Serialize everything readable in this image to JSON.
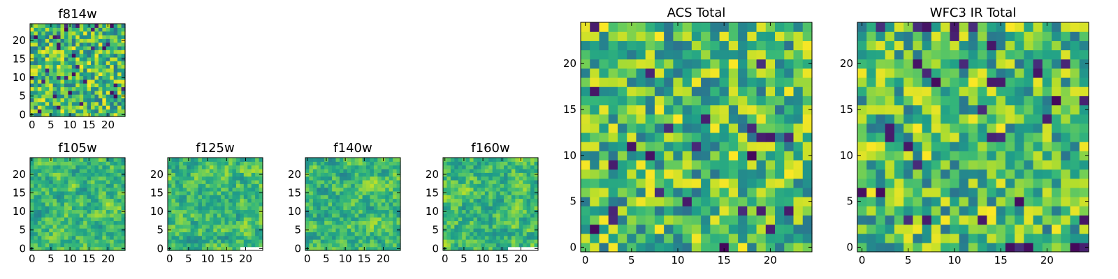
{
  "figure": {
    "colormap": "viridis",
    "colors": {
      "low": "#440154",
      "mid": "#21918c",
      "high": "#fde725",
      "frame": "#000000"
    }
  },
  "chart_data": [
    {
      "type": "heatmap",
      "title": "f814w",
      "grid_size": 25,
      "seed": 814,
      "style": "fine",
      "x_ticks": [
        0,
        5,
        10,
        15,
        20
      ],
      "y_ticks": [
        0,
        5,
        10,
        15,
        20
      ],
      "xlim": [
        0,
        25
      ],
      "ylim": [
        0,
        25
      ]
    },
    {
      "type": "heatmap",
      "title": "f105w",
      "grid_size": 25,
      "seed": 105,
      "style": "smooth",
      "x_ticks": [
        0,
        5,
        10,
        15,
        20
      ],
      "y_ticks": [
        0,
        5,
        10,
        15,
        20
      ],
      "xlim": [
        0,
        25
      ],
      "ylim": [
        0,
        25
      ]
    },
    {
      "type": "heatmap",
      "title": "f125w",
      "grid_size": 25,
      "seed": 125,
      "style": "smooth",
      "missing_bottom_right_columns": [
        19,
        24
      ],
      "x_ticks": [
        0,
        5,
        10,
        15,
        20
      ],
      "y_ticks": [
        0,
        5,
        10,
        15,
        20
      ],
      "xlim": [
        0,
        25
      ],
      "ylim": [
        0,
        25
      ]
    },
    {
      "type": "heatmap",
      "title": "f140w",
      "grid_size": 25,
      "seed": 140,
      "style": "smooth",
      "x_ticks": [
        0,
        5,
        10,
        15,
        20
      ],
      "y_ticks": [
        0,
        5,
        10,
        15,
        20
      ],
      "xlim": [
        0,
        25
      ],
      "ylim": [
        0,
        25
      ]
    },
    {
      "type": "heatmap",
      "title": "f160w",
      "grid_size": 25,
      "seed": 160,
      "style": "smooth",
      "missing_bottom_right_columns": [
        17,
        24
      ],
      "x_ticks": [
        0,
        5,
        10,
        15,
        20
      ],
      "y_ticks": [
        0,
        5,
        10,
        15,
        20
      ],
      "xlim": [
        0,
        25
      ],
      "ylim": [
        0,
        25
      ]
    },
    {
      "type": "heatmap",
      "title": "ACS Total",
      "grid_size": 25,
      "seed": 900,
      "style": "coarse",
      "x_ticks": [
        0,
        5,
        10,
        15,
        20
      ],
      "y_ticks": [
        0,
        5,
        10,
        15,
        20
      ],
      "xlim": [
        0,
        25
      ],
      "ylim": [
        0,
        25
      ]
    },
    {
      "type": "heatmap",
      "title": "WFC3 IR Total",
      "grid_size": 25,
      "seed": 903,
      "style": "coarse",
      "x_ticks": [
        0,
        5,
        10,
        15,
        20
      ],
      "y_ticks": [
        0,
        5,
        10,
        15,
        20
      ],
      "xlim": [
        0,
        25
      ],
      "ylim": [
        0,
        25
      ]
    }
  ]
}
